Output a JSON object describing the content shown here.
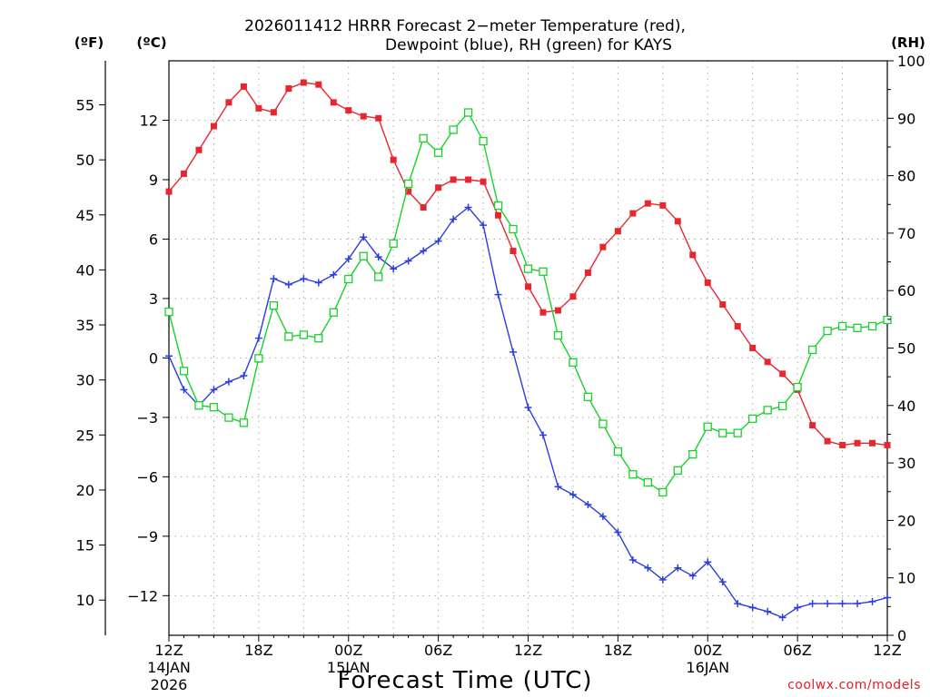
{
  "chart_data": {
    "type": "line",
    "title": "2026011412 HRRR Forecast 2−meter Temperature (red),",
    "subtitle": "Dewpoint (blue), RH (green) for KAYS",
    "xlabel": "Forecast Time (UTC)",
    "credit": "coolwx.com/models",
    "units": {
      "fahrenheit": "(ºF)",
      "celsius": "(ºC)",
      "rh": "(RH)"
    },
    "x_range_hours": [
      0,
      48
    ],
    "ylim_celsius": [
      -14,
      15
    ],
    "ylim_rh": [
      0,
      100
    ],
    "x_ticks": [
      {
        "hour": 0,
        "label": "12Z",
        "label2": "14JAN",
        "label3": "2026"
      },
      {
        "hour": 6,
        "label": "18Z",
        "label2": "",
        "label3": ""
      },
      {
        "hour": 12,
        "label": "00Z",
        "label2": "15JAN",
        "label3": ""
      },
      {
        "hour": 18,
        "label": "06Z",
        "label2": "",
        "label3": ""
      },
      {
        "hour": 24,
        "label": "12Z",
        "label2": "",
        "label3": ""
      },
      {
        "hour": 30,
        "label": "18Z",
        "label2": "",
        "label3": ""
      },
      {
        "hour": 36,
        "label": "00Z",
        "label2": "16JAN",
        "label3": ""
      },
      {
        "hour": 42,
        "label": "06Z",
        "label2": "",
        "label3": ""
      },
      {
        "hour": 48,
        "label": "12Z",
        "label2": "",
        "label3": ""
      }
    ],
    "celsius_ticks": [
      {
        "value": -12,
        "label": "−12"
      },
      {
        "value": -9,
        "label": "−9"
      },
      {
        "value": -6,
        "label": "−6"
      },
      {
        "value": -3,
        "label": "−3"
      },
      {
        "value": 0,
        "label": "0"
      },
      {
        "value": 3,
        "label": "3"
      },
      {
        "value": 6,
        "label": "6"
      },
      {
        "value": 9,
        "label": "9"
      },
      {
        "value": 12,
        "label": "12"
      }
    ],
    "fahrenheit_ticks": [
      {
        "value": 10,
        "label": "10"
      },
      {
        "value": 15,
        "label": "15"
      },
      {
        "value": 20,
        "label": "20"
      },
      {
        "value": 25,
        "label": "25"
      },
      {
        "value": 30,
        "label": "30"
      },
      {
        "value": 35,
        "label": "35"
      },
      {
        "value": 40,
        "label": "40"
      },
      {
        "value": 45,
        "label": "45"
      },
      {
        "value": 50,
        "label": "50"
      },
      {
        "value": 55,
        "label": "55"
      }
    ],
    "rh_ticks": [
      {
        "value": 0,
        "label": "0"
      },
      {
        "value": 10,
        "label": "10"
      },
      {
        "value": 20,
        "label": "20"
      },
      {
        "value": 30,
        "label": "30"
      },
      {
        "value": 40,
        "label": "40"
      },
      {
        "value": 50,
        "label": "50"
      },
      {
        "value": 60,
        "label": "60"
      },
      {
        "value": 70,
        "label": "70"
      },
      {
        "value": 80,
        "label": "80"
      },
      {
        "value": 90,
        "label": "90"
      },
      {
        "value": 100,
        "label": "100"
      }
    ],
    "series": [
      {
        "name": "2-meter Temperature",
        "axis": "celsius",
        "color": "#e8262e",
        "marker": "filled-square",
        "values": [
          8.4,
          9.3,
          10.5,
          11.7,
          12.9,
          13.7,
          12.6,
          12.4,
          13.6,
          13.9,
          13.8,
          12.9,
          12.5,
          12.2,
          12.1,
          10.0,
          8.4,
          7.6,
          8.6,
          9.0,
          9.0,
          8.9,
          7.2,
          5.4,
          3.6,
          2.3,
          2.4,
          3.1,
          4.3,
          5.6,
          6.4,
          7.3,
          7.8,
          7.7,
          6.9,
          5.2,
          3.8,
          2.7,
          1.6,
          0.5,
          -0.2,
          -0.8,
          -1.6,
          -3.4,
          -4.2,
          -4.4,
          -4.3,
          -4.3,
          -4.4
        ]
      },
      {
        "name": "Dewpoint",
        "axis": "celsius",
        "color": "#2a3ee0",
        "marker": "plus",
        "values": [
          0.1,
          -1.6,
          -2.4,
          -1.6,
          -1.2,
          -0.9,
          1.0,
          4.0,
          3.7,
          4.0,
          3.8,
          4.2,
          5.0,
          6.1,
          5.1,
          4.5,
          4.9,
          5.4,
          5.9,
          7.0,
          7.6,
          6.7,
          3.2,
          0.3,
          -2.5,
          -3.9,
          -6.5,
          -6.9,
          -7.4,
          -8.0,
          -8.8,
          -10.2,
          -10.6,
          -11.2,
          -10.6,
          -11.0,
          -10.3,
          -11.3,
          -12.4,
          -12.6,
          -12.8,
          -13.1,
          -12.6,
          -12.4,
          -12.4,
          -12.4,
          -12.4,
          -12.3,
          -12.1
        ]
      },
      {
        "name": "RH",
        "axis": "rh",
        "color": "#19d22a",
        "marker": "open-square",
        "values": [
          56.3,
          46.0,
          40.0,
          39.7,
          37.9,
          37.0,
          48.2,
          57.4,
          52.0,
          52.3,
          51.7,
          56.2,
          62.0,
          66.0,
          62.4,
          68.2,
          78.6,
          86.5,
          84.0,
          88.0,
          91.0,
          86.0,
          74.8,
          70.7,
          63.8,
          63.3,
          52.2,
          47.5,
          41.5,
          36.8,
          32.0,
          28.0,
          26.6,
          24.9,
          28.7,
          31.5,
          36.3,
          35.2,
          35.2,
          37.7,
          39.2,
          39.9,
          43.2,
          49.7,
          53.0,
          53.8,
          53.5,
          53.8,
          54.9
        ]
      }
    ]
  }
}
